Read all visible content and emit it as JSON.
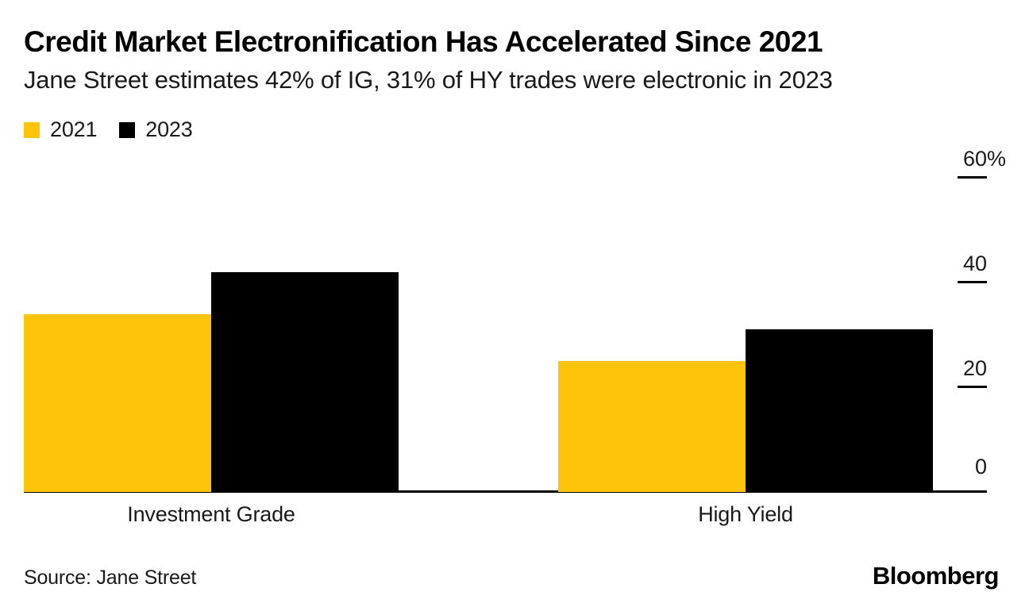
{
  "header": {
    "title": "Credit Market Electronification Has Accelerated Since 2021",
    "subtitle": "Jane Street estimates 42% of IG, 31% of HY trades were electronic in 2023"
  },
  "legend": [
    {
      "label": "2021",
      "color": "#FDC40A"
    },
    {
      "label": "2023",
      "color": "#000000"
    }
  ],
  "chart_data": {
    "type": "bar",
    "title": "Credit Market Electronification Has Accelerated Since 2021",
    "subtitle": "Jane Street estimates 42% of IG, 31% of HY trades were electronic in 2023",
    "categories": [
      "Investment Grade",
      "High Yield"
    ],
    "series": [
      {
        "name": "2021",
        "color": "#FDC40A",
        "values": [
          34,
          25
        ]
      },
      {
        "name": "2023",
        "color": "#000000",
        "values": [
          42,
          31
        ]
      }
    ],
    "xlabel": "",
    "ylabel": "",
    "ylim": [
      0,
      60
    ],
    "yticks": [
      {
        "value": 60,
        "label": "60",
        "suffix": "%"
      },
      {
        "value": 40,
        "label": "40",
        "suffix": ""
      },
      {
        "value": 20,
        "label": "20",
        "suffix": ""
      },
      {
        "value": 0,
        "label": "0",
        "suffix": ""
      }
    ],
    "grid": false,
    "legend_position": "top-left",
    "axis_side": "right"
  },
  "footer": {
    "source": "Source: Jane Street",
    "brand": "Bloomberg"
  }
}
